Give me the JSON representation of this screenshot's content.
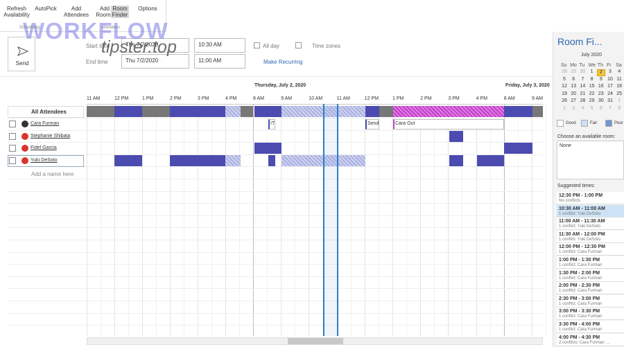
{
  "ribbon": {
    "buttons": [
      "Refresh Availability",
      "AutoPick",
      "Add Attendees",
      "Add Rooms",
      "Room Finder",
      "Options"
    ],
    "groups": [
      "Scheduling",
      "Attendees"
    ]
  },
  "watermark": {
    "brand": "WORKFLOW",
    "site": "tipster.top"
  },
  "form": {
    "send": "Send",
    "start_label": "Start time",
    "start_date": "Thu 7/2/2020",
    "start_time": "10:30 AM",
    "all_day": "All day",
    "time_zones": "Time zones",
    "end_label": "End time",
    "end_date": "Thu 7/2/2020",
    "end_time": "11:00 AM",
    "recurring": "Make Recurring"
  },
  "timeline": {
    "dates": [
      "Thursday, July 2, 2020",
      "Friday, July 3, 2020"
    ],
    "hours": [
      "11 AM",
      "12 PM",
      "1 PM",
      "2 PM",
      "3 PM",
      "4 PM",
      "8 AM",
      "9 AM",
      "10 AM",
      "11 AM",
      "12 PM",
      "1 PM",
      "2 PM",
      "3 PM",
      "4 PM",
      "8 AM",
      "9 AM"
    ]
  },
  "attendees": {
    "header": "All Attendees",
    "names": [
      "Cara Furman",
      "Stephanie Shibata",
      "Fidel Garcia",
      "Yuki DeSoto"
    ],
    "add": "Add a name here",
    "busy_labels": [
      "IT",
      "Send",
      "Cara Out"
    ]
  },
  "room_finder": {
    "title": "Room Fi...",
    "month": "July 2020",
    "weekdays": [
      "Su",
      "Mo",
      "Tu",
      "We",
      "Th",
      "Fr",
      "Sa"
    ],
    "weeks": [
      [
        28,
        29,
        30,
        1,
        2,
        3,
        4
      ],
      [
        5,
        6,
        7,
        8,
        9,
        10,
        11
      ],
      [
        12,
        13,
        14,
        15,
        16,
        17,
        18
      ],
      [
        19,
        20,
        21,
        22,
        23,
        24,
        25
      ],
      [
        26,
        27,
        28,
        29,
        30,
        31,
        1
      ],
      [
        2,
        3,
        4,
        5,
        6,
        7,
        8
      ]
    ],
    "legend": [
      "Good",
      "Fair",
      "Poor"
    ],
    "choose_label": "Choose an available room:",
    "room": "None",
    "suggested_label": "Suggested times:",
    "suggestions": [
      {
        "time": "12:30 PM - 1:00 PM",
        "conflict": "No conflicts"
      },
      {
        "time": "10:30 AM - 11:00 AM",
        "conflict": "1 conflict: Yuki DeSoto"
      },
      {
        "time": "11:00 AM - 11:30 AM",
        "conflict": "1 conflict: Yuki DeSoto"
      },
      {
        "time": "11:30 AM - 12:00 PM",
        "conflict": "1 conflict: Yuki DeSoto"
      },
      {
        "time": "12:00 PM - 12:30 PM",
        "conflict": "1 conflict: Cara Furman"
      },
      {
        "time": "1:00 PM - 1:30 PM",
        "conflict": "1 conflict: Cara Furman"
      },
      {
        "time": "1:30 PM - 2:00 PM",
        "conflict": "1 conflict: Cara Furman"
      },
      {
        "time": "2:00 PM - 2:30 PM",
        "conflict": "1 conflict: Cara Furman"
      },
      {
        "time": "2:30 PM - 3:00 PM",
        "conflict": "1 conflict: Cara Furman"
      },
      {
        "time": "3:00 PM - 3:30 PM",
        "conflict": "1 conflict: Cara Furman"
      },
      {
        "time": "3:30 PM - 4:00 PM",
        "conflict": "1 conflict: Cara Furman"
      },
      {
        "time": "4:00 PM - 4:30 PM",
        "conflict": "2 conflicts: Cara Furman; ..."
      }
    ]
  }
}
